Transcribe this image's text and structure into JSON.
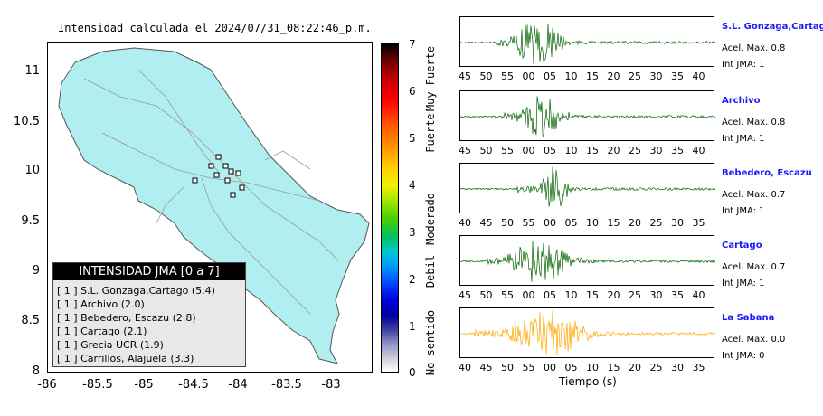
{
  "map": {
    "title": "Intensidad calculada el 2024/07/31_08:22:46_p.m.",
    "y_ticks": [
      "11",
      "10.5",
      "10",
      "9.5",
      "9",
      "8.5",
      "8"
    ],
    "x_ticks": [
      "-86",
      "-85.5",
      "-85",
      "-84.5",
      "-84",
      "-83.5",
      "-83"
    ],
    "legend": {
      "header": "INTENSIDAD JMA [0 a 7]",
      "items": [
        "[ 1 ]  S.L. Gonzaga,Cartago (5.4)",
        "[ 1 ]  Archivo (2.0)",
        "[ 1 ]  Bebedero, Escazu (2.8)",
        "[ 1 ]  Cartago (2.1)",
        "[ 1 ]  Grecia UCR (1.9)",
        "[ 1 ]  Carrillos, Alajuela (3.3)"
      ]
    }
  },
  "colorbar": {
    "ticks": [
      "7",
      "6",
      "5",
      "4",
      "3",
      "2",
      "1",
      "0"
    ],
    "labels": [
      "Muy Fuerte",
      "Fuerte",
      "Moderado",
      "Debil",
      "No sentido"
    ]
  },
  "stations": [
    {
      "name": "S.L. Gonzaga,Cartago",
      "accel": "Acel. Max. 0.8",
      "int": "Int JMA: 1",
      "ticks": [
        "45",
        "50",
        "55",
        "00",
        "05",
        "10",
        "15",
        "20",
        "25",
        "30",
        "35",
        "40"
      ],
      "color": "#006400"
    },
    {
      "name": "Archivo",
      "accel": "Acel. Max. 0.8",
      "int": "Int JMA: 1",
      "ticks": [
        "45",
        "50",
        "55",
        "00",
        "05",
        "10",
        "15",
        "20",
        "25",
        "30",
        "35",
        "40"
      ],
      "color": "#006400"
    },
    {
      "name": "Bebedero, Escazu",
      "accel": "Acel. Max. 0.7",
      "int": "Int JMA: 1",
      "ticks": [
        "40",
        "45",
        "50",
        "55",
        "00",
        "05",
        "10",
        "15",
        "20",
        "25",
        "30",
        "35"
      ],
      "color": "#006400"
    },
    {
      "name": "Cartago",
      "accel": "Acel. Max. 0.7",
      "int": "Int JMA: 1",
      "ticks": [
        "45",
        "50",
        "55",
        "00",
        "05",
        "10",
        "15",
        "20",
        "25",
        "30",
        "35",
        "40"
      ],
      "color": "#006400"
    },
    {
      "name": "La Sabana",
      "accel": "Acel. Max. 0.0",
      "int": "Int JMA: 0",
      "ticks": [
        "40",
        "45",
        "50",
        "55",
        "00",
        "05",
        "10",
        "15",
        "20",
        "25",
        "30",
        "35"
      ],
      "color": "#ffa500"
    }
  ],
  "time_axis_label": "Tiempo (s)"
}
